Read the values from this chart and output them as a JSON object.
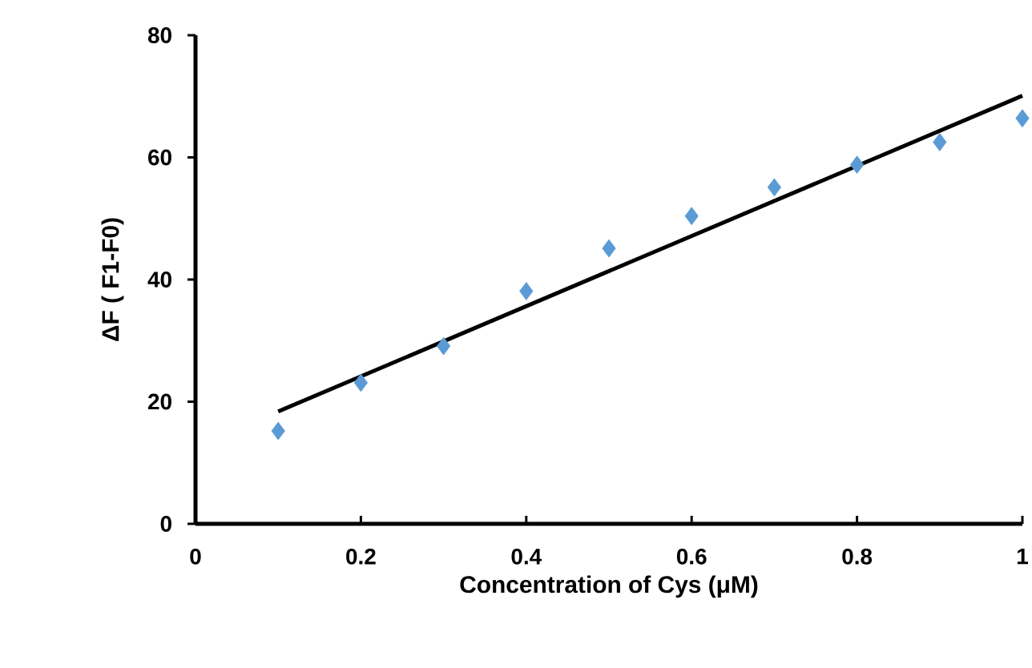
{
  "chart_data": {
    "type": "scatter",
    "xlabel": "Concentration of Cys (μM)",
    "ylabel": "ΔF ( F1-F0)",
    "x": [
      0.1,
      0.2,
      0.3,
      0.4,
      0.5,
      0.6,
      0.7,
      0.8,
      0.9,
      1.0
    ],
    "series": [
      {
        "color": "#5b9bd5",
        "marker": "diamond",
        "values": [
          15.2,
          23.1,
          29.1,
          38.1,
          45.1,
          50.4,
          55.1,
          58.8,
          62.5,
          66.4
        ]
      },
      {
        "type": "line",
        "marker": "none",
        "color": "#000000",
        "x": [
          0.1,
          1.0
        ],
        "values": [
          18.4,
          70.1
        ]
      }
    ],
    "xlim": [
      0,
      1
    ],
    "ylim": [
      0,
      80
    ],
    "xticks": [
      0,
      0.2,
      0.4,
      0.6,
      0.8,
      1
    ],
    "yticks": [
      0,
      20,
      40,
      60,
      80
    ],
    "line_style": "solid"
  }
}
